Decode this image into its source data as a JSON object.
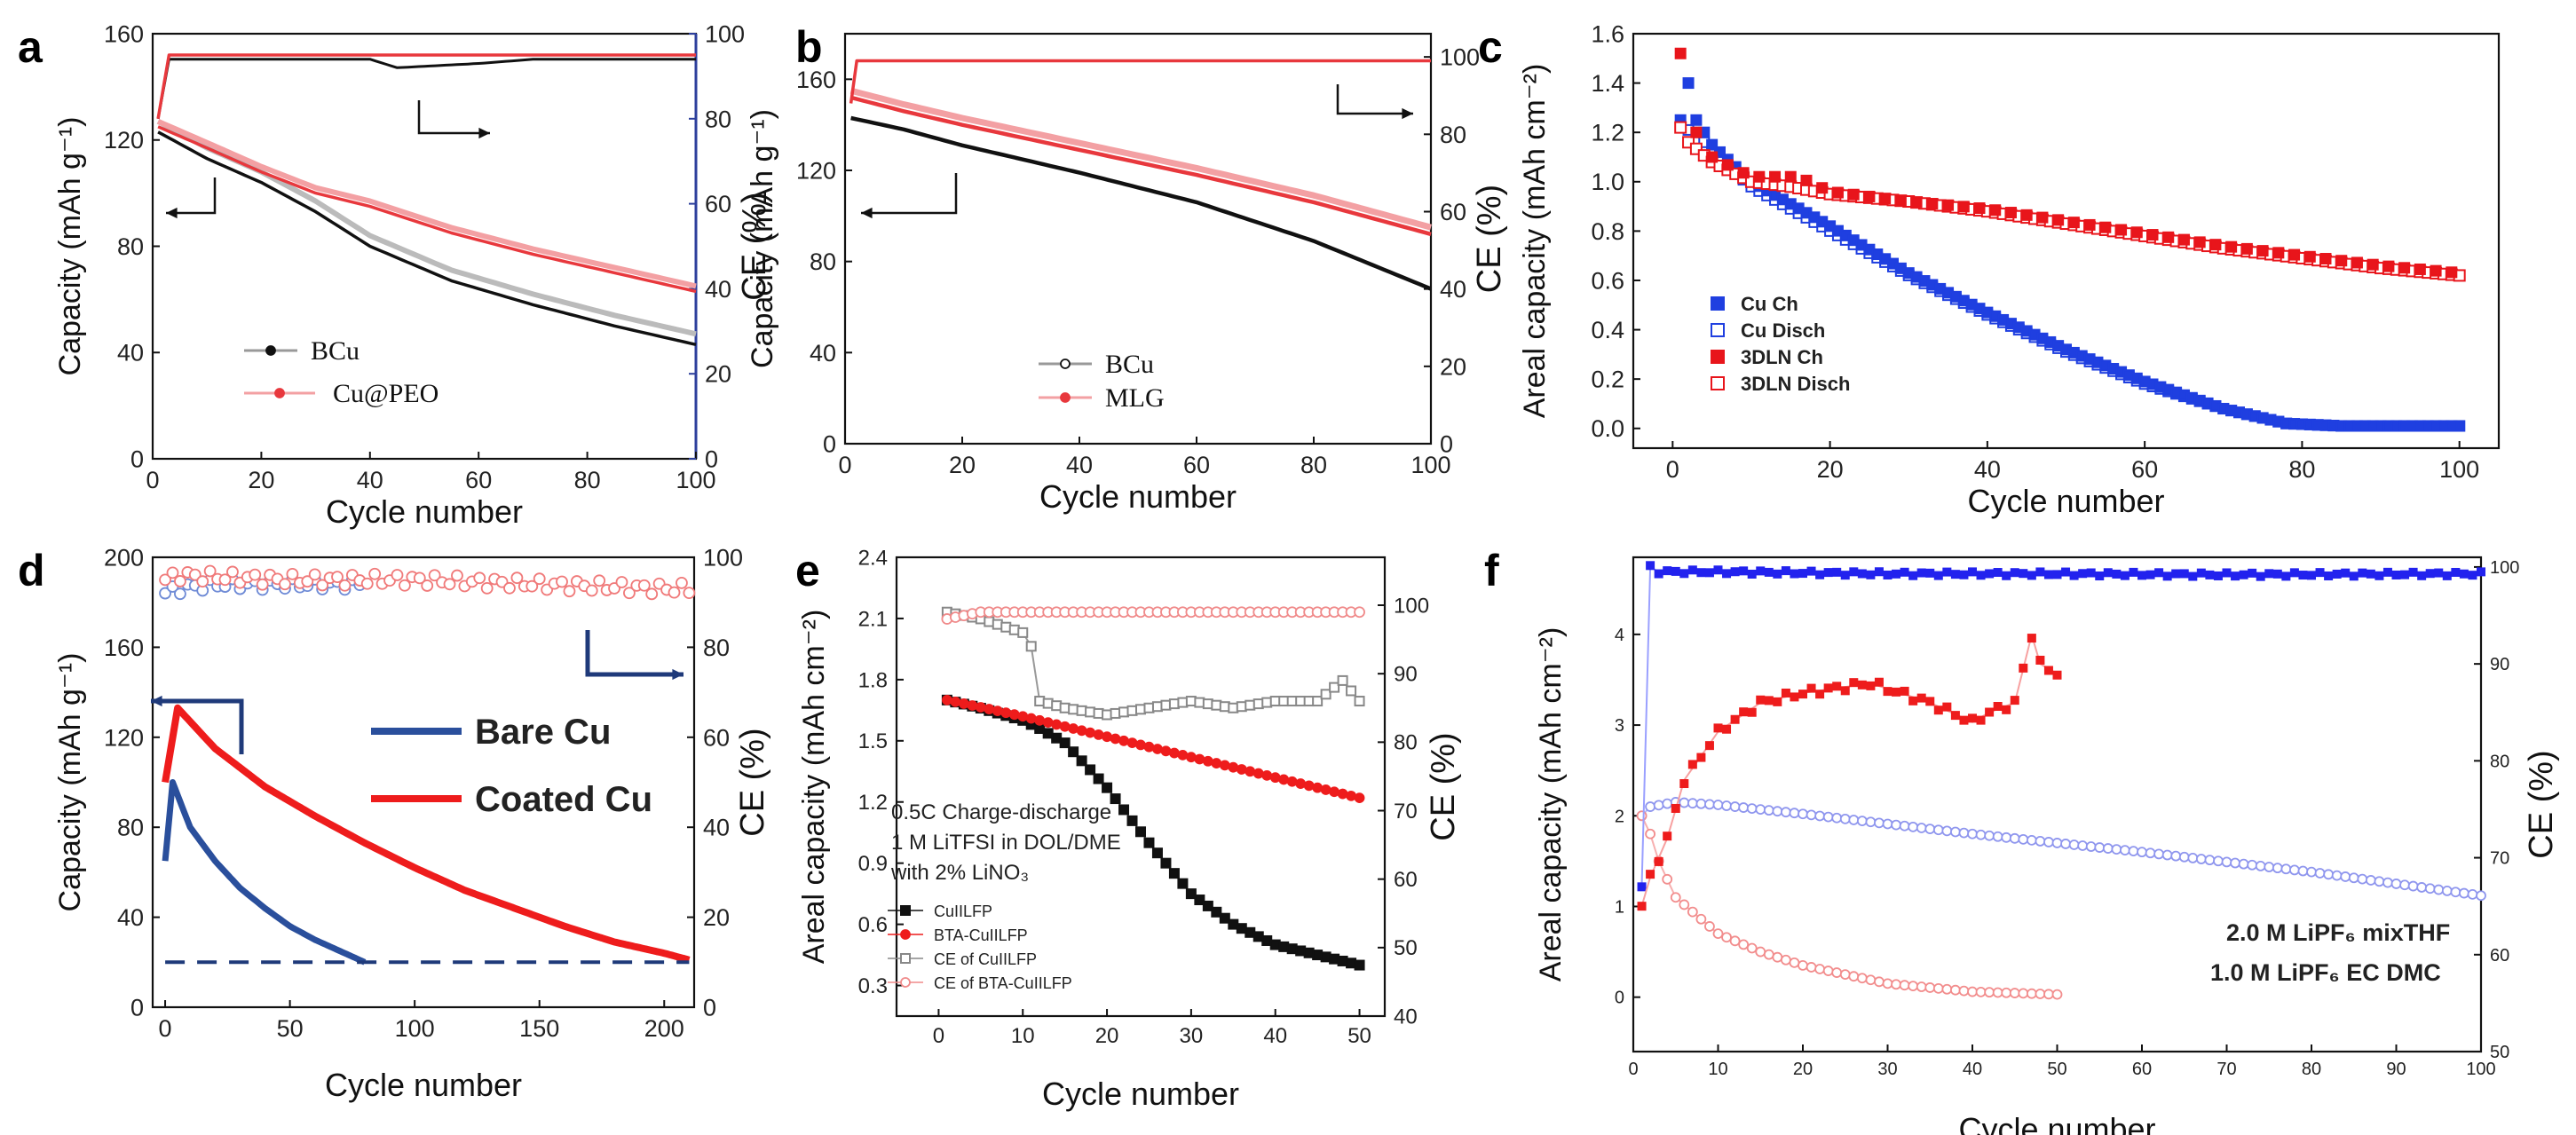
{
  "panels": [
    {
      "letter": "a",
      "xlabel": "Cycle number",
      "ylabel_left": "Capacity (mAh g⁻¹)",
      "ylabel_right": "CE (%)",
      "x_ticks": [
        "0",
        "20",
        "40",
        "60",
        "80",
        "100"
      ],
      "y_ticks_left": [
        "0",
        "40",
        "80",
        "120",
        "160"
      ],
      "y_ticks_right": [
        "0",
        "20",
        "40",
        "60",
        "80",
        "100"
      ],
      "legend": [
        "BCu",
        "Cu@PEO"
      ]
    },
    {
      "letter": "b",
      "xlabel": "Cycle number",
      "ylabel_left": "Capacity (mAh g⁻¹)",
      "ylabel_right": "CE (%)",
      "x_ticks": [
        "0",
        "20",
        "40",
        "60",
        "80",
        "100"
      ],
      "y_ticks_left": [
        "0",
        "40",
        "80",
        "120",
        "160"
      ],
      "y_ticks_right": [
        "0",
        "20",
        "40",
        "60",
        "80",
        "100"
      ],
      "legend": [
        "BCu",
        "MLG"
      ]
    },
    {
      "letter": "c",
      "xlabel": "Cycle number",
      "ylabel_left": "Areal capacity (mAh cm⁻²)",
      "x_ticks": [
        "0",
        "20",
        "40",
        "60",
        "80",
        "100"
      ],
      "y_ticks_left": [
        "0.0",
        "0.2",
        "0.4",
        "0.6",
        "0.8",
        "1.0",
        "1.2",
        "1.4",
        "1.6"
      ],
      "legend": [
        "Cu Ch",
        "Cu Disch",
        "3DLN Ch",
        "3DLN Disch"
      ]
    },
    {
      "letter": "d",
      "xlabel": "Cycle number",
      "ylabel_left": "Capacity (mAh g⁻¹)",
      "ylabel_right": "CE (%)",
      "x_ticks": [
        "0",
        "50",
        "100",
        "150",
        "200"
      ],
      "y_ticks_left": [
        "0",
        "40",
        "80",
        "120",
        "160",
        "200"
      ],
      "y_ticks_right": [
        "0",
        "20",
        "40",
        "60",
        "80",
        "100"
      ],
      "legend": [
        "Bare Cu",
        "Coated Cu"
      ]
    },
    {
      "letter": "e",
      "xlabel": "Cycle number",
      "ylabel_left": "Areal capacity (mAh cm⁻²)",
      "ylabel_right": "CE (%)",
      "x_ticks": [
        "0",
        "10",
        "20",
        "30",
        "40",
        "50"
      ],
      "y_ticks_left": [
        "0.3",
        "0.6",
        "0.9",
        "1.2",
        "1.5",
        "1.8",
        "2.1",
        "2.4"
      ],
      "y_ticks_right": [
        "40",
        "50",
        "60",
        "70",
        "80",
        "90",
        "100"
      ],
      "annotation": [
        "0.5C Charge-discharge",
        "1 M LiTFSI in DOL/DME",
        "with 2% LiNO₃"
      ],
      "legend": [
        "CuIILFP",
        "BTA-CuIILFP",
        "CE of  CuIILFP",
        "CE of BTA-CuIILFP"
      ]
    },
    {
      "letter": "f",
      "xlabel": "Cycle number",
      "ylabel_left": "Areal capacity (mAh cm⁻²)",
      "ylabel_right": "CE (%)",
      "x_ticks": [
        "0",
        "10",
        "20",
        "30",
        "40",
        "50",
        "60",
        "70",
        "80",
        "90",
        "100"
      ],
      "y_ticks_left": [
        "0",
        "1",
        "2",
        "3",
        "4"
      ],
      "y_ticks_right": [
        "50",
        "60",
        "70",
        "80",
        "90",
        "100"
      ],
      "legend": [
        "2.0 M  LiPF₆ mixTHF",
        "1.0 M  LiPF₆ EC DMC"
      ]
    }
  ],
  "chart_data": [
    {
      "panel": "a",
      "type": "line",
      "title": "",
      "xlabel": "Cycle number",
      "ylabel": "Capacity (mAh g-1)",
      "y2label": "CE (%)",
      "xlim": [
        0,
        100
      ],
      "ylim": [
        0,
        160
      ],
      "y2lim": [
        0,
        100
      ],
      "colors": {
        "BCu": "#111111",
        "Cu@PEO": "#e8383d"
      },
      "series": [
        {
          "name": "BCu",
          "axis": "left",
          "x": [
            1,
            10,
            20,
            30,
            40,
            55,
            70,
            85,
            100
          ],
          "y": [
            123,
            113,
            104,
            93,
            80,
            67,
            58,
            50,
            43
          ]
        },
        {
          "name": "Cu@PEO",
          "axis": "left",
          "x": [
            1,
            10,
            20,
            30,
            40,
            55,
            70,
            85,
            100
          ],
          "y": [
            125,
            117,
            108,
            100,
            95,
            85,
            77,
            70,
            63
          ]
        },
        {
          "name": "BCu CE",
          "axis": "right",
          "x": [
            1,
            3,
            20,
            40,
            45,
            60,
            70,
            100
          ],
          "y": [
            80,
            94,
            94,
            94,
            92,
            93,
            94,
            94
          ]
        },
        {
          "name": "Cu@PEO CE",
          "axis": "right",
          "x": [
            1,
            3,
            20,
            40,
            60,
            80,
            100
          ],
          "y": [
            80,
            95,
            95,
            95,
            95,
            95,
            95
          ]
        }
      ]
    },
    {
      "panel": "b",
      "type": "line",
      "title": "",
      "xlabel": "Cycle number",
      "ylabel": "Capacity (mAh g-1)",
      "y2label": "CE (%)",
      "xlim": [
        0,
        100
      ],
      "ylim": [
        0,
        180
      ],
      "y2lim": [
        0,
        106
      ],
      "colors": {
        "BCu": "#111111",
        "MLG": "#e8383d"
      },
      "series": [
        {
          "name": "BCu",
          "axis": "left",
          "x": [
            1,
            10,
            20,
            40,
            60,
            80,
            100
          ],
          "y": [
            143,
            138,
            131,
            119,
            106,
            89,
            68
          ]
        },
        {
          "name": "MLG",
          "axis": "left",
          "x": [
            1,
            10,
            20,
            40,
            60,
            80,
            100
          ],
          "y": [
            152,
            146,
            140,
            129,
            118,
            106,
            92
          ]
        },
        {
          "name": "MLG CE",
          "axis": "right",
          "x": [
            1,
            2,
            10,
            50,
            100
          ],
          "y": [
            88,
            99,
            99,
            99,
            99
          ]
        }
      ]
    },
    {
      "panel": "c",
      "type": "scatter",
      "title": "",
      "xlabel": "Cycle number",
      "ylabel": "Areal capacity (mAh cm-2)",
      "xlim": [
        -5,
        105
      ],
      "ylim": [
        -0.08,
        1.6
      ],
      "colors": {
        "Cu": "#1f3fe0",
        "3DLN": "#e8151b"
      },
      "series": [
        {
          "name": "Cu Ch",
          "x": [
            1,
            2,
            3,
            5,
            10,
            20,
            30,
            40,
            50,
            60,
            70,
            78,
            85,
            100
          ],
          "y": [
            1.25,
            1.4,
            1.25,
            1.15,
            1.0,
            0.82,
            0.63,
            0.47,
            0.32,
            0.19,
            0.08,
            0.02,
            0.01,
            0.01
          ]
        },
        {
          "name": "Cu Disch",
          "x": [
            1,
            3,
            5,
            10,
            20,
            30,
            40,
            50,
            60,
            70,
            78,
            85,
            100
          ],
          "y": [
            1.22,
            1.2,
            1.12,
            0.98,
            0.8,
            0.62,
            0.46,
            0.31,
            0.18,
            0.08,
            0.02,
            0.01,
            0.01
          ]
        },
        {
          "name": "3DLN Ch",
          "x": [
            1,
            2,
            5,
            10,
            16,
            20,
            30,
            40,
            50,
            60,
            70,
            80,
            90,
            100
          ],
          "y": [
            1.52,
            1.25,
            1.1,
            1.02,
            1.02,
            0.96,
            0.92,
            0.89,
            0.84,
            0.79,
            0.74,
            0.7,
            0.66,
            0.63
          ]
        },
        {
          "name": "3DLN Disch",
          "x": [
            1,
            2,
            5,
            10,
            15,
            20,
            30,
            40,
            50,
            60,
            70,
            80,
            90,
            100
          ],
          "y": [
            1.22,
            1.16,
            1.08,
            1.0,
            0.98,
            0.95,
            0.92,
            0.88,
            0.83,
            0.78,
            0.73,
            0.69,
            0.65,
            0.62
          ]
        }
      ]
    },
    {
      "panel": "d",
      "type": "line",
      "title": "",
      "xlabel": "Cycle number",
      "ylabel": "Capacity (mAh g-1)",
      "y2label": "CE (%)",
      "xlim": [
        -5,
        212
      ],
      "ylim": [
        0,
        200
      ],
      "y2lim": [
        0,
        100
      ],
      "colors": {
        "Bare Cu": "#2a4f9c",
        "Coated Cu": "#ee1c1c"
      },
      "series": [
        {
          "name": "Bare Cu",
          "axis": "left",
          "x": [
            0,
            3,
            10,
            20,
            30,
            40,
            50,
            60,
            70,
            80
          ],
          "y": [
            65,
            100,
            80,
            65,
            53,
            44,
            36,
            30,
            25,
            20
          ]
        },
        {
          "name": "Coated Cu",
          "axis": "left",
          "x": [
            0,
            5,
            20,
            40,
            60,
            80,
            100,
            120,
            140,
            160,
            180,
            200,
            210
          ],
          "y": [
            100,
            133,
            115,
            98,
            85,
            73,
            62,
            52,
            44,
            36,
            29,
            24,
            21
          ]
        },
        {
          "name": "Bare Cu CE",
          "axis": "right",
          "x": [
            0,
            5,
            20,
            40,
            60,
            80
          ],
          "y": [
            92,
            93,
            94,
            94,
            94,
            94
          ]
        },
        {
          "name": "Coated Cu CE",
          "axis": "right",
          "x": [
            0,
            5,
            50,
            100,
            150,
            200,
            210
          ],
          "y": [
            95,
            96,
            95,
            95,
            94,
            93,
            93
          ]
        },
        {
          "name": "Reference",
          "axis": "left",
          "x": [
            0,
            210
          ],
          "y": [
            20,
            20
          ]
        }
      ]
    },
    {
      "panel": "e",
      "type": "scatter",
      "title": "",
      "xlabel": "Cycle number",
      "ylabel": "Areal capacity (mAh cm-2)",
      "y2label": "CE (%)",
      "xlim": [
        -5,
        53
      ],
      "ylim": [
        0.15,
        2.4
      ],
      "y2lim": [
        40,
        107
      ],
      "colors": {
        "CuIILFP": "#111111",
        "BTA-CuIILFP": "#ee1c1c"
      },
      "series": [
        {
          "name": "CuIILFP",
          "axis": "left",
          "x": [
            1,
            5,
            10,
            12,
            15,
            20,
            25,
            30,
            35,
            40,
            45,
            50
          ],
          "y": [
            1.7,
            1.66,
            1.6,
            1.56,
            1.49,
            1.27,
            1.0,
            0.75,
            0.6,
            0.5,
            0.45,
            0.4
          ]
        },
        {
          "name": "BTA-CuIILFP",
          "axis": "left",
          "x": [
            1,
            10,
            20,
            30,
            40,
            50
          ],
          "y": [
            1.7,
            1.62,
            1.52,
            1.42,
            1.32,
            1.22
          ]
        },
        {
          "name": "CE of  CuIILFP",
          "axis": "right",
          "x": [
            1,
            5,
            10,
            11,
            12,
            15,
            20,
            25,
            30,
            35,
            40,
            45,
            48,
            50
          ],
          "y": [
            99,
            98,
            96,
            94,
            86,
            85,
            84,
            85,
            86,
            85,
            86,
            86,
            89,
            86
          ]
        },
        {
          "name": "CE of BTA-CuIILFP",
          "axis": "right",
          "x": [
            1,
            5,
            10,
            20,
            30,
            40,
            50
          ],
          "y": [
            98,
            99,
            99,
            99,
            99,
            99,
            99
          ]
        }
      ]
    },
    {
      "panel": "f",
      "type": "scatter",
      "title": "",
      "xlabel": "Cycle number",
      "ylabel": "Areal capacity (mAh cm-2)",
      "y2label": "CE (%)",
      "xlim": [
        0,
        100
      ],
      "ylim": [
        -0.6,
        4.85
      ],
      "y2lim": [
        50,
        101
      ],
      "colors": {
        "2.0 M  LiPF6 mixTHF": "#2222ee",
        "1.0 M  LiPF6 EC DMC": "#ee1c1c"
      },
      "series": [
        {
          "name": "2.0 M  LiPF6 mixTHF capacity",
          "axis": "left",
          "x": [
            1,
            2,
            5,
            10,
            20,
            40,
            60,
            80,
            100
          ],
          "y": [
            2.0,
            2.1,
            2.15,
            2.12,
            2.02,
            1.8,
            1.6,
            1.38,
            1.12
          ]
        },
        {
          "name": "1.0 M  LiPF6 EC DMC capacity",
          "axis": "left",
          "x": [
            1,
            2,
            3,
            5,
            10,
            15,
            20,
            30,
            40,
            50
          ],
          "y": [
            2.0,
            1.8,
            1.5,
            1.1,
            0.7,
            0.5,
            0.35,
            0.15,
            0.06,
            0.03
          ]
        },
        {
          "name": "2.0 M  LiPF6 mixTHF CE",
          "axis": "right",
          "x": [
            1,
            2,
            3,
            10,
            30,
            50,
            70,
            100
          ],
          "y": [
            67,
            100,
            99.5,
            99.5,
            99.3,
            99.3,
            99.2,
            99.3
          ]
        },
        {
          "name": "1.0 M  LiPF6 EC DMC CE",
          "axis": "right",
          "x": [
            1,
            2,
            4,
            6,
            10,
            15,
            20,
            28,
            35,
            40,
            42,
            45,
            47,
            48,
            50
          ],
          "y": [
            65,
            68,
            72,
            78,
            83,
            86,
            87,
            88,
            86,
            84,
            85,
            86,
            93,
            90,
            89
          ]
        }
      ]
    }
  ]
}
